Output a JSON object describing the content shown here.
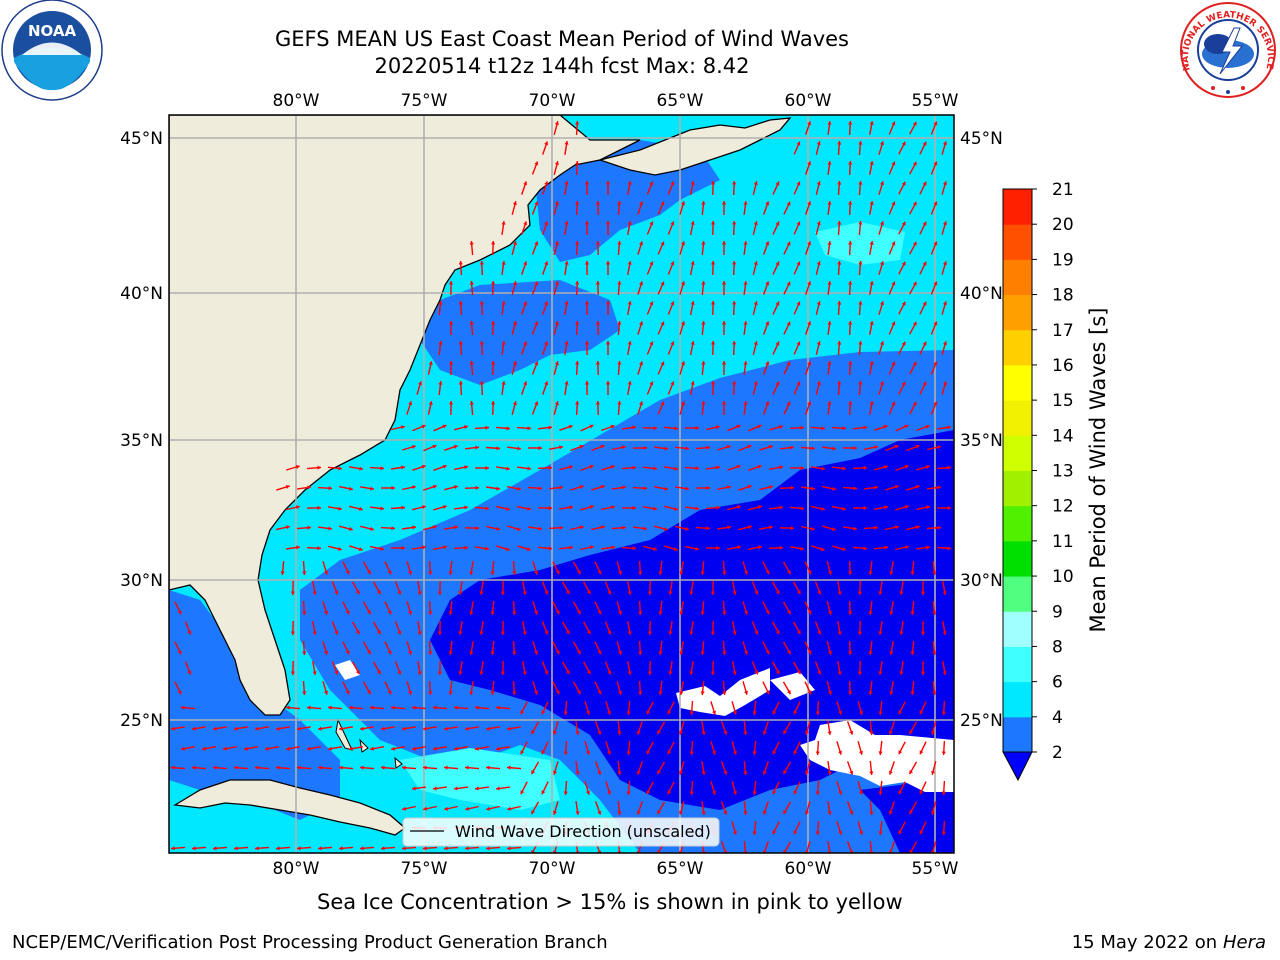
{
  "title": {
    "line1": "GEFS MEAN US East Coast Mean Period of Wind Waves",
    "line2": "20220514 t12z 144h fcst   Max: 8.42"
  },
  "map": {
    "lon_labels": [
      "80°W",
      "75°W",
      "70°W",
      "65°W",
      "60°W",
      "55°W"
    ],
    "lat_labels": [
      "45°N",
      "40°N",
      "35°N",
      "30°N",
      "25°N"
    ],
    "legend_label": "Wind Wave Direction (unscaled)",
    "colors": {
      "land": "#efecdc",
      "band_2_4": "#1e78ff",
      "band_4_6": "#00e8ff",
      "band_6_8": "#40ffff",
      "band_below_2": "#0000f0",
      "arrow": "#ff0000",
      "grid": "#b0b0b0"
    }
  },
  "colorbar": {
    "label": "Mean Period of Wind Waves [s]",
    "ticks": [
      "2",
      "4",
      "6",
      "8",
      "9",
      "10",
      "11",
      "12",
      "13",
      "14",
      "15",
      "16",
      "17",
      "18",
      "19",
      "20",
      "21"
    ],
    "colors": [
      "#1e78ff",
      "#00e8ff",
      "#40ffff",
      "#a0ffff",
      "#50ff80",
      "#00e000",
      "#50f000",
      "#a0f000",
      "#d0ff00",
      "#f0f000",
      "#ffff00",
      "#ffd000",
      "#ffa000",
      "#ff8000",
      "#ff5000",
      "#ff2000"
    ],
    "extend_color": "#0000ff"
  },
  "sea_ice_note": "Sea Ice Concentration > 15% is shown in pink to yellow",
  "footer": {
    "left": "NCEP/EMC/Verification Post Processing Product Generation Branch",
    "date": "15 May 2022 on",
    "machine": "Hera"
  },
  "logos": {
    "noaa_text": "NOAA",
    "nws_text": "NATIONAL WEATHER SERVICE"
  }
}
